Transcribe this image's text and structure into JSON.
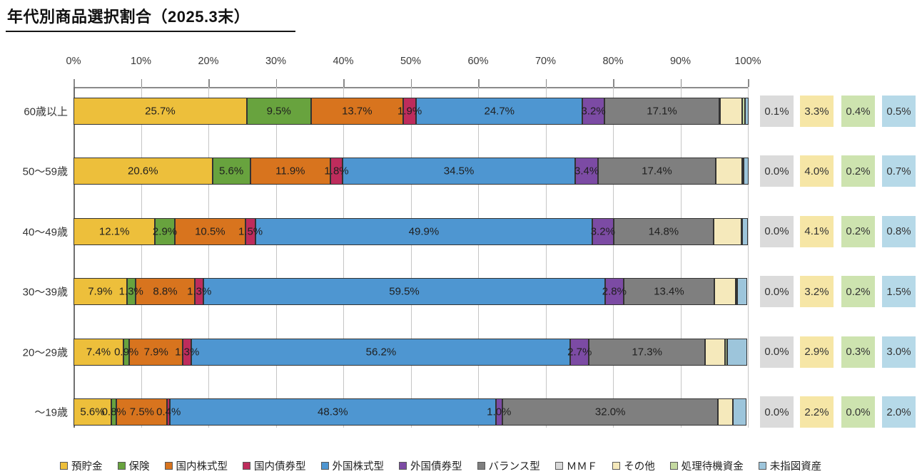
{
  "title": "年代別商品選択割合（2025.3末）",
  "chart_data": {
    "type": "bar",
    "stacked": true,
    "orientation": "horizontal",
    "title": "年代別商品選択割合（2025.3末）",
    "xlim": [
      0,
      100
    ],
    "grid": true,
    "legend_position": "bottom",
    "x_ticks": [
      "0%",
      "10%",
      "20%",
      "30%",
      "40%",
      "50%",
      "60%",
      "70%",
      "80%",
      "90%",
      "100%"
    ],
    "categories": [
      "60歳以上",
      "50～59歳",
      "40～49歳",
      "30～39歳",
      "20～29歳",
      "～19歳"
    ],
    "series": [
      {
        "name": "預貯金",
        "color": "#EDBF3B",
        "show_labels": true,
        "values": [
          25.7,
          20.6,
          12.1,
          7.9,
          7.4,
          5.6
        ]
      },
      {
        "name": "保険",
        "color": "#68A33E",
        "show_labels": true,
        "values": [
          9.5,
          5.6,
          2.9,
          1.3,
          0.9,
          0.8
        ]
      },
      {
        "name": "国内株式型",
        "color": "#D8741E",
        "show_labels": true,
        "values": [
          13.7,
          11.9,
          10.5,
          8.8,
          7.9,
          7.5
        ]
      },
      {
        "name": "国内債券型",
        "color": "#BE2C5C",
        "show_labels": true,
        "values": [
          1.9,
          1.8,
          1.5,
          1.3,
          1.3,
          0.4
        ]
      },
      {
        "name": "外国株式型",
        "color": "#4E96D1",
        "show_labels": true,
        "values": [
          24.7,
          34.5,
          49.9,
          59.5,
          56.2,
          48.3
        ]
      },
      {
        "name": "外国債券型",
        "color": "#7C4BA4",
        "show_labels": true,
        "values": [
          3.2,
          3.4,
          3.2,
          2.8,
          2.7,
          1.0
        ]
      },
      {
        "name": "バランス型",
        "color": "#7F7F7F",
        "show_labels": true,
        "values": [
          17.1,
          17.4,
          14.8,
          13.4,
          17.3,
          32.0
        ]
      },
      {
        "name": "ＭＭＦ",
        "color": "#D9D9D9",
        "show_labels": false,
        "values": [
          0.1,
          0.0,
          0.0,
          0.0,
          0.0,
          0.0
        ]
      },
      {
        "name": "その他",
        "color": "#F5E9BB",
        "show_labels": false,
        "values": [
          3.3,
          4.0,
          4.1,
          3.2,
          2.9,
          2.2
        ]
      },
      {
        "name": "処理待機資金",
        "color": "#C4D9A0",
        "show_labels": false,
        "values": [
          0.4,
          0.2,
          0.2,
          0.2,
          0.3,
          0.0
        ]
      },
      {
        "name": "未指図資産",
        "color": "#9DC5DB",
        "show_labels": false,
        "values": [
          0.5,
          0.7,
          0.8,
          1.5,
          3.0,
          2.0
        ]
      }
    ],
    "side_panel": {
      "series_names": [
        "ＭＭＦ",
        "その他",
        "処理待機資金",
        "未指図資産"
      ],
      "colors": [
        "#DBDBDB",
        "#F6E6A6",
        "#CDE3AF",
        "#B6D9E8"
      ],
      "rows": [
        [
          "0.1%",
          "3.3%",
          "0.4%",
          "0.5%"
        ],
        [
          "0.0%",
          "4.0%",
          "0.2%",
          "0.7%"
        ],
        [
          "0.0%",
          "4.1%",
          "0.2%",
          "0.8%"
        ],
        [
          "0.0%",
          "3.2%",
          "0.2%",
          "1.5%"
        ],
        [
          "0.0%",
          "2.9%",
          "0.3%",
          "3.0%"
        ],
        [
          "0.0%",
          "2.2%",
          "0.0%",
          "2.0%"
        ]
      ]
    },
    "legend": [
      {
        "label": "預貯金",
        "color": "#EDBF3B"
      },
      {
        "label": "保険",
        "color": "#68A33E"
      },
      {
        "label": "国内株式型",
        "color": "#D8741E"
      },
      {
        "label": "国内債券型",
        "color": "#BE2C5C"
      },
      {
        "label": "外国株式型",
        "color": "#4E96D1"
      },
      {
        "label": "外国債券型",
        "color": "#7C4BA4"
      },
      {
        "label": "バランス型",
        "color": "#7F7F7F"
      },
      {
        "label": "ＭＭＦ",
        "color": "#D9D9D9"
      },
      {
        "label": "その他",
        "color": "#F5E9BB"
      },
      {
        "label": "処理待機資金",
        "color": "#C4D9A0"
      },
      {
        "label": "未指図資産",
        "color": "#9DC5DB"
      }
    ]
  }
}
